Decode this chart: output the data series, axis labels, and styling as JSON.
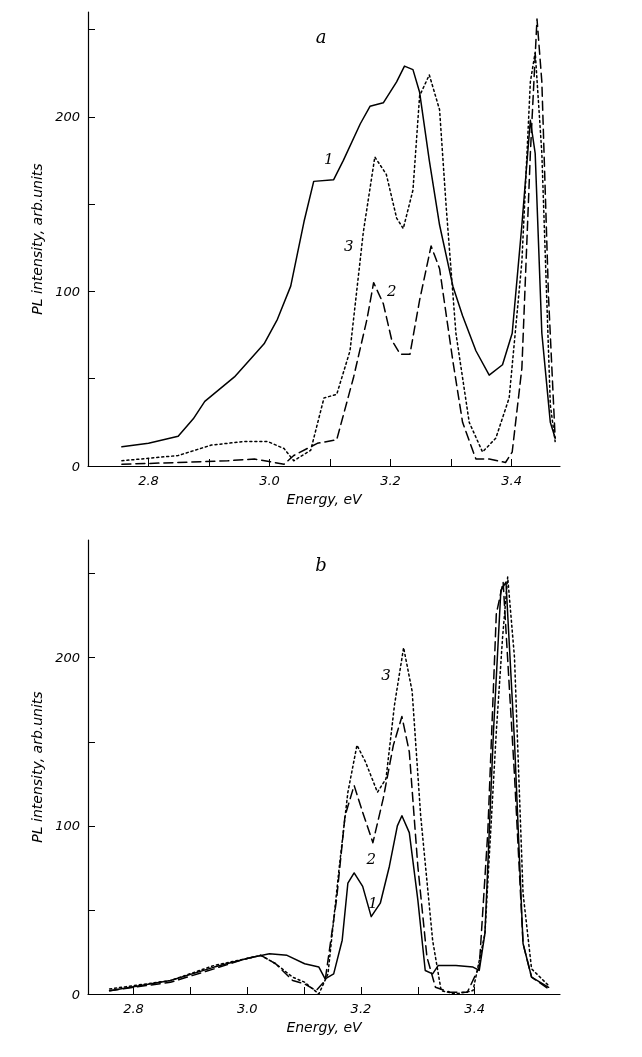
{
  "chart_data": [
    {
      "type": "line",
      "title": "a",
      "xlabel": "Energy, eV",
      "ylabel": "PL intensity, arb.units",
      "xlim": [
        2.7,
        3.48
      ],
      "ylim": [
        0,
        260
      ],
      "xticks": [
        {
          "value": 2.8,
          "label": "2.8"
        },
        {
          "value": 2.9,
          "label": null
        },
        {
          "value": 3.0,
          "label": "3.0"
        },
        {
          "value": 3.1,
          "label": null
        },
        {
          "value": 3.2,
          "label": "3.2"
        },
        {
          "value": 3.3,
          "label": null
        },
        {
          "value": 3.4,
          "label": "3.4"
        }
      ],
      "yticks": [
        0,
        {
          "value": 50,
          "label": null
        },
        100,
        {
          "value": 150,
          "label": null
        },
        200,
        {
          "value": 250,
          "label": null
        }
      ],
      "grid": false,
      "marker": "none",
      "series": [
        {
          "name": "1",
          "color": "#000000",
          "line_style": "solid",
          "x": [
            2.756,
            2.8,
            2.849,
            2.874,
            2.893,
            2.942,
            2.991,
            3.013,
            3.035,
            3.057,
            3.073,
            3.106,
            3.122,
            3.15,
            3.166,
            3.188,
            3.21,
            3.223,
            3.237,
            3.248,
            3.264,
            3.281,
            3.303,
            3.319,
            3.341,
            3.363,
            3.385,
            3.401,
            3.417,
            3.431,
            3.439,
            3.45,
            3.464,
            3.472
          ],
          "values": [
            11,
            13,
            17,
            27,
            37,
            51,
            70,
            84,
            103,
            140,
            163,
            164,
            175,
            196,
            206,
            208,
            220,
            229,
            227,
            214,
            175,
            138,
            103,
            86,
            66,
            52,
            58,
            76,
            138,
            198,
            179,
            76,
            25,
            16
          ]
        },
        {
          "name": "2",
          "color": "#000000",
          "line_style": "dashed",
          "x": [
            2.756,
            2.849,
            2.931,
            2.975,
            3.024,
            3.04,
            3.079,
            3.111,
            3.139,
            3.161,
            3.172,
            3.188,
            3.202,
            3.216,
            3.232,
            3.248,
            3.267,
            3.281,
            3.303,
            3.319,
            3.341,
            3.363,
            3.39,
            3.401,
            3.417,
            3.431,
            3.442,
            3.45,
            3.461,
            3.472
          ],
          "values": [
            1,
            2,
            3,
            4,
            1,
            6,
            13,
            15,
            51,
            84,
            105,
            93,
            72,
            64,
            64,
            95,
            126,
            113,
            60,
            25,
            4,
            4,
            2,
            8,
            56,
            179,
            256,
            220,
            97,
            16
          ]
        },
        {
          "name": "3",
          "color": "#000000",
          "line_style": "dotted",
          "x": [
            2.756,
            2.849,
            2.904,
            2.958,
            2.997,
            3.024,
            3.04,
            3.068,
            3.09,
            3.111,
            3.133,
            3.155,
            3.174,
            3.193,
            3.21,
            3.221,
            3.237,
            3.248,
            3.264,
            3.281,
            3.292,
            3.308,
            3.33,
            3.352,
            3.374,
            3.396,
            3.417,
            3.431,
            3.439,
            3.45,
            3.464,
            3.472
          ],
          "values": [
            3,
            6,
            12,
            14,
            14,
            10,
            3,
            9,
            39,
            41,
            66,
            134,
            177,
            167,
            142,
            136,
            158,
            212,
            224,
            204,
            148,
            76,
            25,
            8,
            16,
            39,
            117,
            220,
            237,
            179,
            35,
            14
          ]
        }
      ]
    },
    {
      "type": "line",
      "title": "b",
      "xlabel": "Energy, eV",
      "ylabel": "PL intensity, arb.units",
      "xlim": [
        2.72,
        3.55
      ],
      "ylim": [
        0,
        270
      ],
      "xticks": [
        {
          "value": 2.8,
          "label": "2.8"
        },
        {
          "value": 2.9,
          "label": null
        },
        {
          "value": 3.0,
          "label": "3.0"
        },
        {
          "value": 3.1,
          "label": null
        },
        {
          "value": 3.2,
          "label": "3.2"
        },
        {
          "value": 3.3,
          "label": null
        },
        {
          "value": 3.4,
          "label": "3.4"
        }
      ],
      "yticks": [
        0,
        {
          "value": 50,
          "label": null
        },
        100,
        {
          "value": 150,
          "label": null
        },
        200,
        {
          "value": 250,
          "label": null
        }
      ],
      "grid": false,
      "marker": "none",
      "series": [
        {
          "name": "1",
          "color": "#000000",
          "line_style": "solid",
          "x": [
            2.758,
            2.865,
            2.942,
            2.998,
            3.039,
            3.07,
            3.101,
            3.126,
            3.137,
            3.152,
            3.167,
            3.177,
            3.188,
            3.203,
            3.218,
            3.234,
            3.25,
            3.264,
            3.272,
            3.285,
            3.3,
            3.313,
            3.326,
            3.336,
            3.367,
            3.397,
            3.408,
            3.418,
            3.433,
            3.446,
            3.455,
            3.47,
            3.485,
            3.5,
            3.53
          ],
          "values": [
            2,
            8,
            16,
            21,
            24,
            23,
            18,
            16,
            9,
            12,
            32,
            66,
            72,
            64,
            46,
            54,
            76,
            100,
            106,
            96,
            56,
            14,
            12,
            17,
            17,
            16,
            14,
            36,
            156,
            240,
            245,
            150,
            30,
            10,
            4
          ]
        },
        {
          "name": "2",
          "color": "#000000",
          "line_style": "dashed",
          "x": [
            2.758,
            2.865,
            2.942,
            2.998,
            3.024,
            3.05,
            3.08,
            3.101,
            3.121,
            3.137,
            3.157,
            3.172,
            3.188,
            3.203,
            3.221,
            3.239,
            3.257,
            3.272,
            3.285,
            3.3,
            3.316,
            3.331,
            3.357,
            3.387,
            3.408,
            3.423,
            3.438,
            3.45,
            3.47,
            3.485,
            3.5,
            3.53
          ],
          "values": [
            2,
            7,
            15,
            21,
            23,
            18,
            8,
            6,
            2,
            8,
            56,
            106,
            124,
            108,
            90,
            116,
            148,
            165,
            144,
            76,
            22,
            4,
            1,
            1,
            16,
            96,
            226,
            245,
            130,
            30,
            10,
            3
          ]
        },
        {
          "name": "3",
          "color": "#000000",
          "line_style": "dotted",
          "x": [
            2.758,
            2.865,
            2.942,
            2.998,
            3.024,
            3.05,
            3.08,
            3.101,
            3.126,
            3.142,
            3.162,
            3.177,
            3.193,
            3.208,
            3.229,
            3.244,
            3.259,
            3.275,
            3.29,
            3.305,
            3.326,
            3.341,
            3.367,
            3.397,
            3.418,
            3.438,
            3.449,
            3.458,
            3.47,
            3.485,
            3.5,
            3.53
          ],
          "values": [
            3,
            8,
            17,
            21,
            23,
            18,
            10,
            7,
            0,
            12,
            76,
            120,
            148,
            138,
            120,
            128,
            172,
            206,
            180,
            106,
            32,
            2,
            0,
            2,
            36,
            156,
            212,
            248,
            200,
            60,
            15,
            5
          ]
        }
      ]
    }
  ]
}
